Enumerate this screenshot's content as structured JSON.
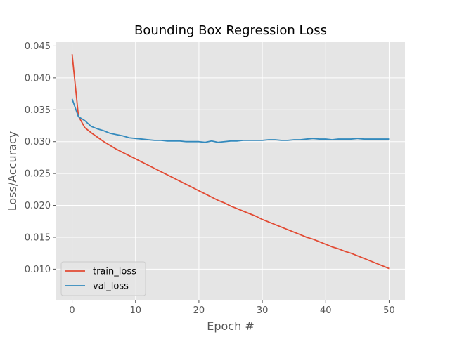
{
  "chart_data": {
    "type": "line",
    "title": "Bounding Box Regression Loss",
    "xlabel": "Epoch #",
    "ylabel": "Loss/Accuracy",
    "xlim": [
      -2.5,
      52.5
    ],
    "ylim": [
      0.0052,
      0.0456
    ],
    "xticks": [
      0,
      10,
      20,
      30,
      40,
      50
    ],
    "xtick_labels": [
      "0",
      "10",
      "20",
      "30",
      "40",
      "50"
    ],
    "yticks": [
      0.01,
      0.015,
      0.02,
      0.025,
      0.03,
      0.035,
      0.04,
      0.045
    ],
    "ytick_labels": [
      "0.010",
      "0.015",
      "0.020",
      "0.025",
      "0.030",
      "0.035",
      "0.040",
      "0.045"
    ],
    "grid": true,
    "legend_position": "lower-left",
    "x": [
      0,
      1,
      2,
      3,
      4,
      5,
      6,
      7,
      8,
      9,
      10,
      11,
      12,
      13,
      14,
      15,
      16,
      17,
      18,
      19,
      20,
      21,
      22,
      23,
      24,
      25,
      26,
      27,
      28,
      29,
      30,
      31,
      32,
      33,
      34,
      35,
      36,
      37,
      38,
      39,
      40,
      41,
      42,
      43,
      44,
      45,
      46,
      47,
      48,
      49,
      50
    ],
    "series": [
      {
        "name": "train_loss",
        "color": "#E24A33",
        "values": [
          0.0437,
          0.034,
          0.0322,
          0.0314,
          0.0307,
          0.03,
          0.0294,
          0.0288,
          0.0283,
          0.0278,
          0.0273,
          0.0268,
          0.0263,
          0.0258,
          0.0253,
          0.0248,
          0.0243,
          0.0238,
          0.0233,
          0.0228,
          0.0223,
          0.0218,
          0.0213,
          0.0208,
          0.0204,
          0.0199,
          0.0195,
          0.0191,
          0.0187,
          0.0183,
          0.0178,
          0.0174,
          0.017,
          0.0166,
          0.0162,
          0.0158,
          0.0154,
          0.015,
          0.0147,
          0.0143,
          0.0139,
          0.0135,
          0.0132,
          0.0128,
          0.0125,
          0.0121,
          0.0117,
          0.0113,
          0.0109,
          0.0105,
          0.0101
        ]
      },
      {
        "name": "val_loss",
        "color": "#348ABD",
        "values": [
          0.0367,
          0.0339,
          0.0333,
          0.0324,
          0.032,
          0.0317,
          0.0313,
          0.0311,
          0.0309,
          0.0306,
          0.0305,
          0.0304,
          0.0303,
          0.0302,
          0.0302,
          0.0301,
          0.0301,
          0.0301,
          0.03,
          0.03,
          0.03,
          0.0299,
          0.0301,
          0.0299,
          0.03,
          0.0301,
          0.0301,
          0.0302,
          0.0302,
          0.0302,
          0.0302,
          0.0303,
          0.0303,
          0.0302,
          0.0302,
          0.0303,
          0.0303,
          0.0304,
          0.0305,
          0.0304,
          0.0304,
          0.0303,
          0.0304,
          0.0304,
          0.0304,
          0.0305,
          0.0304,
          0.0304,
          0.0304,
          0.0304,
          0.0304
        ]
      }
    ]
  }
}
